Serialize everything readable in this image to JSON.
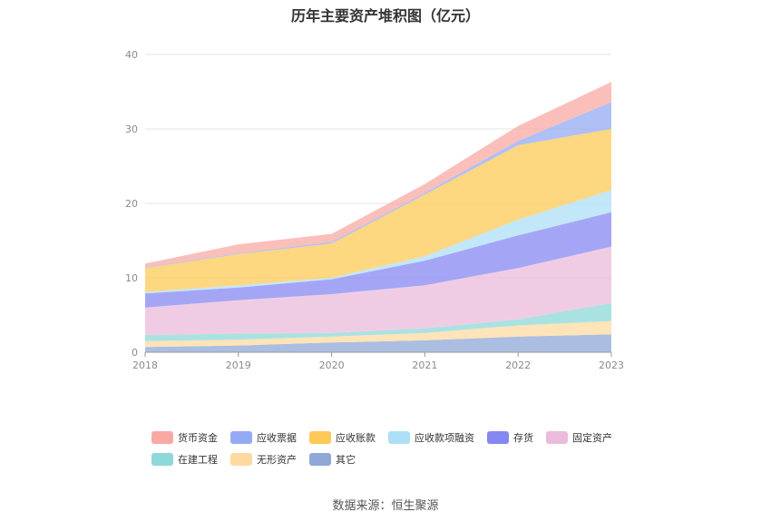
{
  "chart_data": {
    "type": "area",
    "stacked": true,
    "title": "历年主要资产堆积图（亿元）",
    "x": [
      "2018",
      "2019",
      "2020",
      "2021",
      "2022",
      "2023"
    ],
    "ylim": [
      0,
      40
    ],
    "yticks": [
      "0",
      "10",
      "20",
      "30",
      "40"
    ],
    "grid": true,
    "legend_position": "bottom",
    "series": [
      {
        "name": "其它",
        "color": "#8fa8d8",
        "values": [
          0.7,
          0.9,
          1.3,
          1.6,
          2.1,
          2.4
        ]
      },
      {
        "name": "无形资产",
        "color": "#fddba0",
        "values": [
          0.8,
          0.8,
          0.8,
          1.0,
          1.5,
          1.8
        ]
      },
      {
        "name": "在建工程",
        "color": "#8dd8d8",
        "values": [
          0.8,
          0.8,
          0.5,
          0.6,
          0.8,
          2.4
        ]
      },
      {
        "name": "固定资产",
        "color": "#ebbbdb",
        "values": [
          3.7,
          4.5,
          5.2,
          5.8,
          6.9,
          7.6
        ]
      },
      {
        "name": "存货",
        "color": "#8588f2",
        "values": [
          1.9,
          1.7,
          2.0,
          3.3,
          4.4,
          4.6
        ]
      },
      {
        "name": "应收款项融资",
        "color": "#addff5",
        "values": [
          0.2,
          0.3,
          0.2,
          0.6,
          2.1,
          3.0
        ]
      },
      {
        "name": "应收账款",
        "color": "#fdc957",
        "values": [
          3.2,
          4.2,
          4.6,
          8.3,
          10.0,
          8.2
        ]
      },
      {
        "name": "应收票据",
        "color": "#94abf4",
        "values": [
          0.1,
          0.1,
          0.2,
          0.2,
          0.6,
          3.6
        ]
      },
      {
        "name": "货币资金",
        "color": "#f8a9a4",
        "values": [
          0.5,
          1.2,
          1.1,
          1.2,
          2.0,
          2.7
        ]
      }
    ],
    "legend_order": [
      "货币资金",
      "应收票据",
      "应收账款",
      "应收款项融资",
      "存货",
      "固定资产",
      "在建工程",
      "无形资产",
      "其它"
    ]
  },
  "source_label": "数据来源：恒生聚源"
}
